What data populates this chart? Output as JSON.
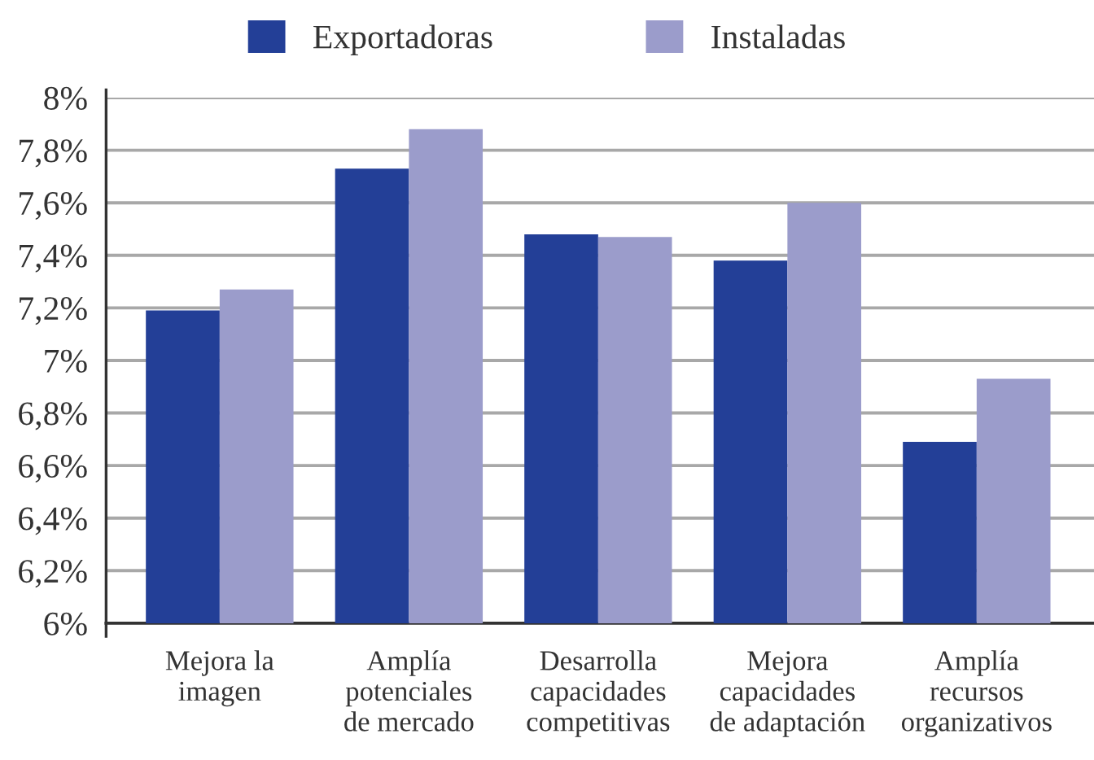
{
  "chart_data": {
    "type": "bar",
    "categories": [
      "Mejora la\nimagen",
      "Amplía\npotenciales\nde mercado",
      "Desarrolla\ncapacidades\ncompetitivas",
      "Mejora\ncapacidades\nde adaptación",
      "Amplía\nrecursos\norganizativos"
    ],
    "series": [
      {
        "name": "Exportadoras",
        "color": "#233f97",
        "values": [
          7.19,
          7.73,
          7.48,
          7.38,
          6.69
        ]
      },
      {
        "name": "Instaladas",
        "color": "#9b9ccb",
        "values": [
          7.27,
          7.88,
          7.47,
          7.6,
          6.93
        ]
      }
    ],
    "ylim": [
      6,
      8
    ],
    "yticks": [
      {
        "value": 6,
        "label": "6%"
      },
      {
        "value": 6.2,
        "label": "6,2%"
      },
      {
        "value": 6.4,
        "label": "6,4%"
      },
      {
        "value": 6.6,
        "label": "6,6%"
      },
      {
        "value": 6.8,
        "label": "6,8%"
      },
      {
        "value": 7,
        "label": "7%"
      },
      {
        "value": 7.2,
        "label": "7,2%"
      },
      {
        "value": 7.4,
        "label": "7,4%"
      },
      {
        "value": 7.6,
        "label": "7,6%"
      },
      {
        "value": 7.8,
        "label": "7,8%"
      },
      {
        "value": 8,
        "label": "8%"
      }
    ],
    "grid": "y",
    "legend": "top"
  }
}
